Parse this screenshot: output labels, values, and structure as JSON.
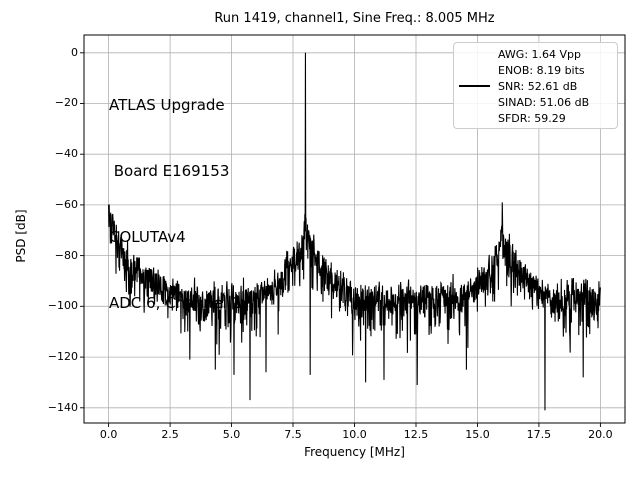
{
  "chart_data": {
    "type": "line",
    "title": "Run 1419, channel1, Sine Freq.: 8.005 MHz",
    "xlabel": "Frequency [MHz]",
    "ylabel": "PSD [dB]",
    "xlim": [
      -1,
      21
    ],
    "ylim": [
      -146,
      7
    ],
    "xticks": [
      0,
      2.5,
      5,
      7.5,
      10,
      12.5,
      15,
      17.5,
      20
    ],
    "yticks": [
      0,
      -20,
      -40,
      -60,
      -80,
      -100,
      -120,
      -140
    ],
    "grid": true,
    "grid_color": "#b0b0b0",
    "line_color": "#000000",
    "background_color": "#ffffff",
    "annotation": {
      "lines": [
        "ATLAS Upgrade",
        " Board E169153",
        "COLUTAv4",
        "ADC 6, Channel 1"
      ]
    },
    "legend": {
      "position": "upper right",
      "entries": [
        "AWG: 1.64 Vpp",
        "ENOB: 8.19 bits",
        "SNR: 52.61 dB",
        "SINAD: 51.06 dB",
        "SFDR: 59.29"
      ],
      "line_swatch_entry": "SNR: 52.61 dB",
      "line_swatch_index": 2
    },
    "spectrum": {
      "description": "PSD of an 8.005 MHz sine sampled in a 0-20 MHz Nyquist band; fundamental at 0 dB, alias/harmonic hump near 16 MHz at -59 dB, DC/low-frequency rise to -60 dB, noise floor near -97 dB",
      "bins": 1660,
      "seed": 1419,
      "fundamental": {
        "freq_mhz": 8.005,
        "level_db": 0
      },
      "peaks": [
        [
          0.0,
          -60
        ],
        [
          8.005,
          0
        ],
        [
          16.01,
          -59
        ]
      ],
      "noise_floor_mean_db": [
        [
          0,
          -98
        ],
        [
          2,
          -97
        ],
        [
          4,
          -97
        ],
        [
          6,
          -96.5
        ],
        [
          8,
          -96
        ],
        [
          10,
          -96.5
        ],
        [
          11.5,
          -97
        ],
        [
          13,
          -96
        ],
        [
          14,
          -95.5
        ],
        [
          16,
          -96
        ],
        [
          18,
          -96.5
        ],
        [
          20,
          -95
        ]
      ],
      "low_freq_envelope_db": [
        [
          0,
          -62
        ],
        [
          0.1,
          -68
        ],
        [
          0.25,
          -73
        ],
        [
          0.5,
          -77
        ],
        [
          0.8,
          -81
        ],
        [
          1.2,
          -85
        ],
        [
          1.7,
          -89
        ],
        [
          2.3,
          -93
        ],
        [
          3,
          -97
        ]
      ],
      "fundamental_skirt_db": [
        [
          6.2,
          -97
        ],
        [
          6.6,
          -93
        ],
        [
          7.0,
          -89
        ],
        [
          7.3,
          -84
        ],
        [
          7.6,
          -80
        ],
        [
          7.85,
          -75
        ],
        [
          7.95,
          -70
        ],
        [
          8.005,
          -66
        ],
        [
          8.07,
          -71
        ],
        [
          8.2,
          -76
        ],
        [
          8.45,
          -80
        ],
        [
          8.7,
          -84
        ],
        [
          9.0,
          -88
        ],
        [
          9.4,
          -92
        ],
        [
          9.9,
          -97
        ]
      ],
      "harmonic_skirt_db": [
        [
          14.4,
          -97
        ],
        [
          14.9,
          -92
        ],
        [
          15.3,
          -88
        ],
        [
          15.6,
          -84
        ],
        [
          15.85,
          -79
        ],
        [
          15.95,
          -74
        ],
        [
          16.01,
          -68
        ],
        [
          16.1,
          -74
        ],
        [
          16.3,
          -79
        ],
        [
          16.6,
          -84
        ],
        [
          16.95,
          -88
        ],
        [
          17.4,
          -93
        ],
        [
          18.0,
          -97
        ]
      ],
      "deep_dips": [
        [
          3.3,
          -121
        ],
        [
          5.1,
          -127
        ],
        [
          5.75,
          -137
        ],
        [
          6.4,
          -126
        ],
        [
          8.2,
          -127
        ],
        [
          10.45,
          -130
        ],
        [
          11.2,
          -129
        ],
        [
          12.55,
          -131
        ],
        [
          14.55,
          -125
        ],
        [
          17.75,
          -141
        ],
        [
          19.3,
          -128
        ]
      ]
    }
  }
}
